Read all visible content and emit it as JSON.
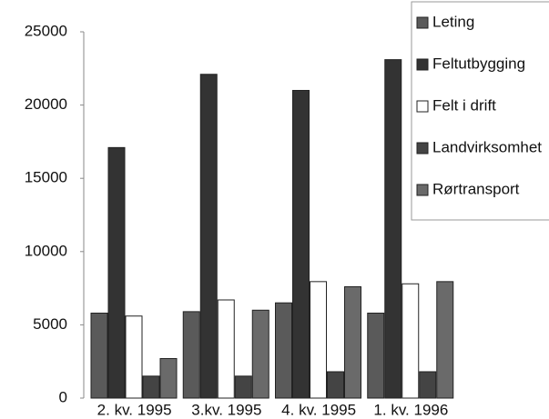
{
  "chart_data": {
    "type": "bar",
    "categories": [
      "2. kv. 1995",
      "3.kv. 1995",
      "4. kv. 1995",
      "1. kv. 1996"
    ],
    "series": [
      {
        "name": "Leting",
        "color": "#5a5a5a",
        "values": [
          5800,
          5900,
          6500,
          5800
        ]
      },
      {
        "name": "Feltutbygging",
        "color": "#333333",
        "values": [
          17100,
          22100,
          21000,
          23100
        ]
      },
      {
        "name": "Felt i drift",
        "color": "#ffffff",
        "values": [
          5600,
          6700,
          7950,
          7800
        ]
      },
      {
        "name": "Landvirksomhet",
        "color": "#444444",
        "values": [
          1500,
          1500,
          1800,
          1800
        ]
      },
      {
        "name": "Rørtransport",
        "color": "#6a6a6a",
        "values": [
          2700,
          6000,
          7600,
          7950
        ]
      }
    ],
    "ylim": [
      0,
      25000
    ],
    "yticks": [
      0,
      5000,
      10000,
      15000,
      20000,
      25000
    ],
    "grid": false
  }
}
